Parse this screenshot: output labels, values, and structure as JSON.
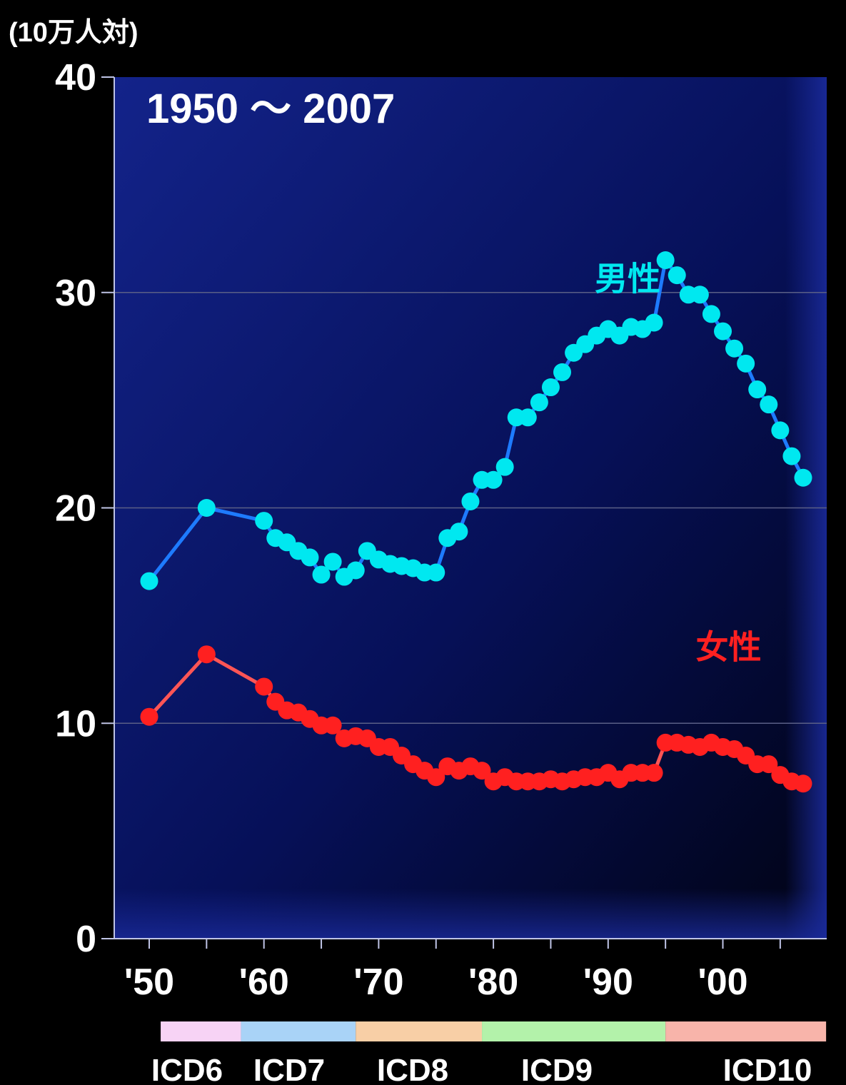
{
  "chart_data": {
    "type": "line",
    "title": "1950 ～ 2007",
    "ylabel": "(10万人対)",
    "xlabel": "",
    "xlim": [
      1947,
      2009
    ],
    "ylim": [
      0,
      40
    ],
    "y_ticks": [
      0,
      10,
      20,
      30,
      40
    ],
    "x_tick_labels": [
      {
        "x": 1950,
        "label": "'50"
      },
      {
        "x": 1960,
        "label": "'60"
      },
      {
        "x": 1970,
        "label": "'70"
      },
      {
        "x": 1980,
        "label": "'80"
      },
      {
        "x": 1990,
        "label": "'90"
      },
      {
        "x": 2000,
        "label": "'00"
      }
    ],
    "x_ticks": [
      1950,
      1955,
      1960,
      1965,
      1970,
      1975,
      1980,
      1985,
      1990,
      1995,
      2000,
      2005
    ],
    "grid": true,
    "plot_background": "#0a1a78",
    "series": [
      {
        "name": "男性",
        "point_color": "#00e8f0",
        "line_color": "#1e7bff",
        "x": [
          1950,
          1955,
          1960,
          1961,
          1962,
          1963,
          1964,
          1965,
          1966,
          1967,
          1968,
          1969,
          1970,
          1971,
          1972,
          1973,
          1974,
          1975,
          1976,
          1977,
          1978,
          1979,
          1980,
          1981,
          1982,
          1983,
          1984,
          1985,
          1986,
          1987,
          1988,
          1989,
          1990,
          1991,
          1992,
          1993,
          1994,
          1995,
          1996,
          1997,
          1998,
          1999,
          2000,
          2001,
          2002,
          2003,
          2004,
          2005,
          2006,
          2007
        ],
        "y": [
          16.6,
          20.0,
          19.4,
          18.6,
          18.4,
          18.0,
          17.7,
          16.9,
          17.5,
          16.8,
          17.1,
          18.0,
          17.6,
          17.4,
          17.3,
          17.2,
          17.0,
          17.0,
          18.6,
          18.9,
          20.3,
          21.3,
          21.3,
          21.9,
          24.2,
          24.2,
          24.9,
          25.6,
          26.3,
          27.2,
          27.6,
          28.0,
          28.3,
          28.0,
          28.4,
          28.3,
          28.6,
          31.5,
          30.8,
          29.9,
          29.9,
          29.0,
          28.2,
          27.4,
          26.7,
          25.5,
          24.8,
          23.6,
          22.4,
          21.4
        ]
      },
      {
        "name": "女性",
        "point_color": "#ff2020",
        "line_color": "#ff5555",
        "x": [
          1950,
          1955,
          1960,
          1961,
          1962,
          1963,
          1964,
          1965,
          1966,
          1967,
          1968,
          1969,
          1970,
          1971,
          1972,
          1973,
          1974,
          1975,
          1976,
          1977,
          1978,
          1979,
          1980,
          1981,
          1982,
          1983,
          1984,
          1985,
          1986,
          1987,
          1988,
          1989,
          1990,
          1991,
          1992,
          1993,
          1994,
          1995,
          1996,
          1997,
          1998,
          1999,
          2000,
          2001,
          2002,
          2003,
          2004,
          2005,
          2006,
          2007
        ],
        "y": [
          10.3,
          13.2,
          11.7,
          11.0,
          10.6,
          10.5,
          10.2,
          9.9,
          9.9,
          9.3,
          9.4,
          9.3,
          8.9,
          8.9,
          8.5,
          8.1,
          7.8,
          7.5,
          8.0,
          7.8,
          8.0,
          7.8,
          7.3,
          7.5,
          7.3,
          7.3,
          7.3,
          7.4,
          7.3,
          7.4,
          7.5,
          7.5,
          7.7,
          7.4,
          7.7,
          7.7,
          7.7,
          9.1,
          9.1,
          9.0,
          8.9,
          9.1,
          8.9,
          8.8,
          8.5,
          8.1,
          8.1,
          7.6,
          7.3,
          7.2
        ]
      }
    ],
    "series_labels": [
      {
        "text": "男性",
        "color": "#00e8f0",
        "x": 1991.7,
        "y": 30.1
      },
      {
        "text": "女性",
        "color": "#ff2020",
        "x": 2000.5,
        "y": 13.0
      }
    ],
    "icd_bands": [
      {
        "label": "ICD6",
        "x_start": 1951,
        "x_end": 1958,
        "color": "#f7d3f5"
      },
      {
        "label": "ICD7",
        "x_start": 1958,
        "x_end": 1968,
        "color": "#a9d3f7"
      },
      {
        "label": "ICD8",
        "x_start": 1968,
        "x_end": 1979,
        "color": "#f8cfa6"
      },
      {
        "label": "ICD9",
        "x_start": 1979,
        "x_end": 1995,
        "color": "#b3f2aa"
      },
      {
        "label": "ICD10",
        "x_start": 1995,
        "x_end": 2009,
        "color": "#f8b4aa"
      }
    ]
  }
}
